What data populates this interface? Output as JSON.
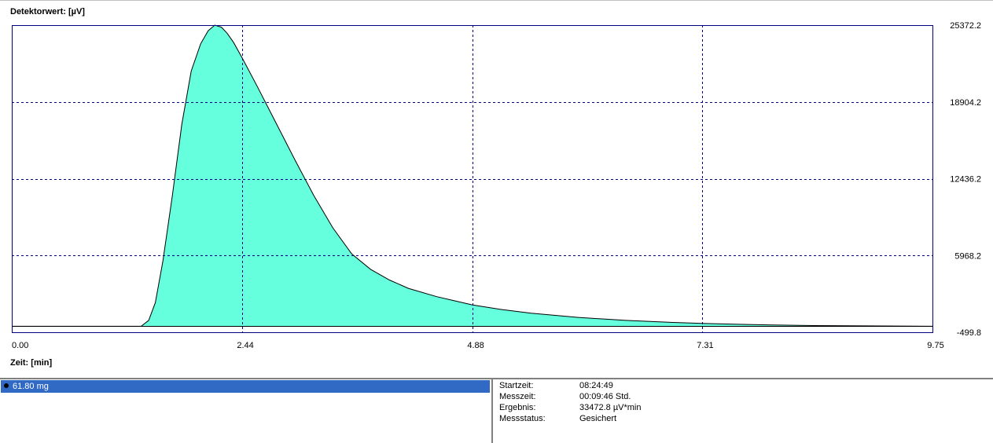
{
  "chart_data": {
    "type": "area",
    "title": "",
    "ylabel": "Detektorwert:  [µV]",
    "xlabel": "Zeit:  [min]",
    "xlim": [
      0.0,
      9.75
    ],
    "ylim": [
      -499.8,
      25372.2
    ],
    "x_ticks": [
      "0.00",
      "2.44",
      "4.88",
      "7.31",
      "9.75"
    ],
    "y_ticks": [
      "25372.2",
      "18904.2",
      "12436.2",
      "5968.2",
      "-499.8"
    ],
    "x_tick_values": [
      0.0,
      2.44,
      4.88,
      7.31,
      9.75
    ],
    "y_tick_values": [
      25372.2,
      18904.2,
      12436.2,
      5968.2,
      -499.8
    ],
    "grid": true,
    "baseline": 0,
    "fill_color": "#66ffdd",
    "line_color": "#000000",
    "grid_color": "#000080",
    "axis_color": "#000080",
    "series": [
      {
        "x": [
          0.0,
          1.0,
          1.37,
          1.45,
          1.52,
          1.6,
          1.7,
          1.8,
          1.9,
          2.0,
          2.08,
          2.15,
          2.22,
          2.28,
          2.35,
          2.44,
          2.6,
          2.8,
          3.0,
          3.2,
          3.4,
          3.6,
          3.8,
          4.0,
          4.2,
          4.5,
          4.88,
          5.2,
          5.5,
          6.0,
          6.5,
          7.0,
          7.31,
          7.7,
          8.0,
          8.5,
          9.75
        ],
        "y": [
          0,
          0,
          0,
          500,
          2000,
          5500,
          11000,
          17000,
          21500,
          23800,
          24900,
          25372,
          25200,
          24700,
          23900,
          22600,
          20200,
          17100,
          14000,
          11000,
          8300,
          6100,
          4800,
          3900,
          3200,
          2500,
          1800,
          1400,
          1100,
          750,
          500,
          330,
          250,
          170,
          120,
          60,
          0
        ]
      }
    ]
  },
  "sample_list": {
    "selected_label": "61.80 mg"
  },
  "info_panel": {
    "rows": [
      {
        "key": "Startzeit:",
        "value": "08:24:49"
      },
      {
        "key": "Messzeit:",
        "value": "00:09:46 Std."
      },
      {
        "key": "Ergebnis:",
        "value": "33472.8 µV*min"
      },
      {
        "key": "Messstatus:",
        "value": "Gesichert"
      }
    ]
  }
}
